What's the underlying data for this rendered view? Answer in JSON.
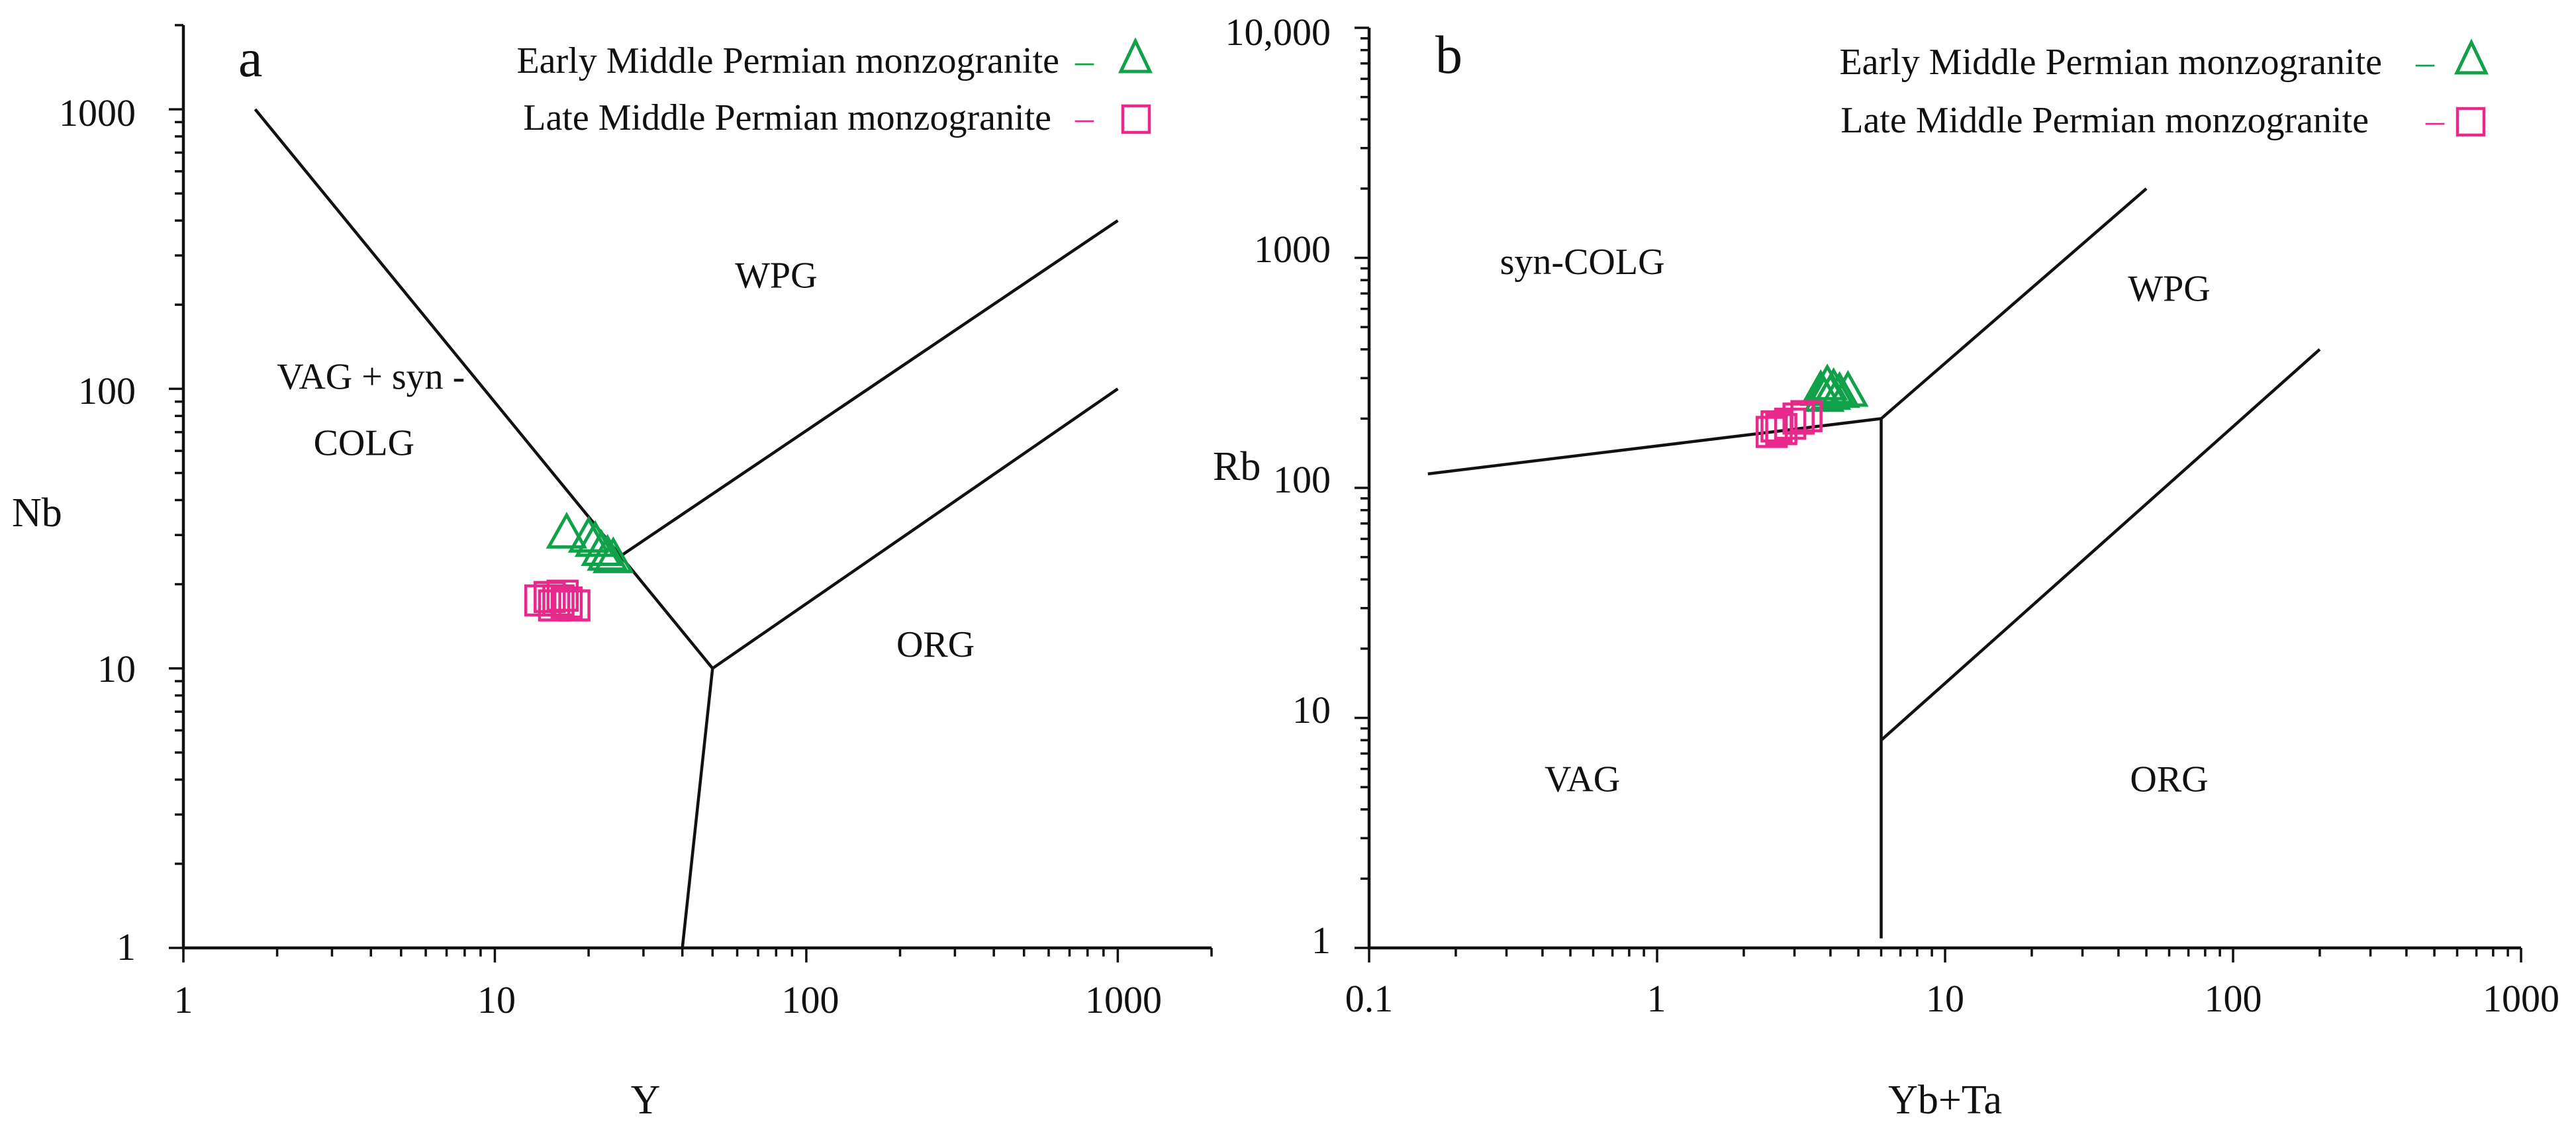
{
  "colors": {
    "early": "#11a14a",
    "late": "#e8298c",
    "ink": "#111111"
  },
  "legend": {
    "early_label": "Early Middle Permian monzogranite",
    "late_label": "Late Middle Permian monzogranite",
    "early_dash": "–",
    "late_dash": "–"
  },
  "chart_data": [
    {
      "type": "scatter",
      "panel_label": "a",
      "xlabel": "Y",
      "ylabel": "Nb",
      "xscale": "log",
      "yscale": "log",
      "xlim": [
        1,
        2000
      ],
      "ylim": [
        1,
        2000
      ],
      "x_tick_labels": [
        {
          "v": 1,
          "t": "1"
        },
        {
          "v": 10,
          "t": "10"
        },
        {
          "v": 100,
          "t": "100"
        },
        {
          "v": 1000,
          "t": "1000"
        }
      ],
      "y_tick_labels": [
        {
          "v": 1,
          "t": "1"
        },
        {
          "v": 10,
          "t": "10"
        },
        {
          "v": 100,
          "t": "100"
        },
        {
          "v": 1000,
          "t": "1000"
        }
      ],
      "boundaries": [
        [
          [
            1.7,
            1000
          ],
          [
            50,
            10
          ]
        ],
        [
          [
            50,
            10
          ],
          [
            40,
            1
          ]
        ],
        [
          [
            50,
            10
          ],
          [
            1000,
            100
          ]
        ],
        [
          [
            25,
            25
          ],
          [
            1000,
            400
          ]
        ]
      ],
      "fields": [
        {
          "label": "WPG",
          "x": 80,
          "y": 230
        },
        {
          "label": "VAG + syn -",
          "x": 4.0,
          "y": 100
        },
        {
          "label": "COLG",
          "x": 3.8,
          "y": 58
        },
        {
          "label": "ORG",
          "x": 260,
          "y": 11
        }
      ],
      "series": [
        {
          "name": "Early Middle Permian monzogranite",
          "marker": "triangle",
          "points": [
            [
              17,
              30
            ],
            [
              20,
              29
            ],
            [
              21,
              28
            ],
            [
              22,
              26
            ],
            [
              23,
              25
            ],
            [
              24,
              24.5
            ]
          ]
        },
        {
          "name": "Late Middle Permian monzogranite",
          "marker": "square",
          "points": [
            [
              14,
              17.5
            ],
            [
              15,
              18
            ],
            [
              16,
              17.5
            ],
            [
              15.5,
              16.8
            ],
            [
              17,
              17.2
            ],
            [
              18,
              16.8
            ],
            [
              16.5,
              18.2
            ]
          ]
        }
      ]
    },
    {
      "type": "scatter",
      "panel_label": "b",
      "xlabel": "Yb+Ta",
      "ylabel": "Rb",
      "xscale": "log",
      "yscale": "log",
      "xlim": [
        0.1,
        1000
      ],
      "ylim": [
        1,
        10000
      ],
      "x_tick_labels": [
        {
          "v": 0.1,
          "t": "0.1"
        },
        {
          "v": 1,
          "t": "1"
        },
        {
          "v": 10,
          "t": "10"
        },
        {
          "v": 100,
          "t": "100"
        },
        {
          "v": 1000,
          "t": "1000"
        }
      ],
      "y_tick_labels": [
        {
          "v": 1,
          "t": "1"
        },
        {
          "v": 10,
          "t": "10"
        },
        {
          "v": 100,
          "t": "100"
        },
        {
          "v": 1000,
          "t": "1000"
        },
        {
          "v": 10000,
          "t": "10,000"
        }
      ],
      "boundaries": [
        [
          [
            0.16,
            115
          ],
          [
            6,
            200
          ]
        ],
        [
          [
            6,
            200
          ],
          [
            50,
            2000
          ]
        ],
        [
          [
            6,
            200
          ],
          [
            6,
            1.1
          ]
        ],
        [
          [
            6,
            8
          ],
          [
            200,
            400
          ]
        ]
      ],
      "fields": [
        {
          "label": "syn-COLG",
          "x": 0.55,
          "y": 850
        },
        {
          "label": "WPG",
          "x": 60,
          "y": 650
        },
        {
          "label": "VAG",
          "x": 0.55,
          "y": 4.8
        },
        {
          "label": "ORG",
          "x": 60,
          "y": 4.8
        }
      ],
      "series": [
        {
          "name": "Early Middle Permian monzogranite",
          "marker": "triangle",
          "points": [
            [
              3.7,
              260
            ],
            [
              3.9,
              275
            ],
            [
              4.1,
              265
            ],
            [
              4.0,
              250
            ],
            [
              4.3,
              255
            ],
            [
              4.6,
              258
            ],
            [
              3.8,
              245
            ]
          ]
        },
        {
          "name": "Late Middle Permian monzogranite",
          "marker": "square",
          "points": [
            [
              2.5,
              175
            ],
            [
              2.7,
              180
            ],
            [
              2.9,
              190
            ],
            [
              3.1,
              200
            ],
            [
              3.3,
              205
            ],
            [
              2.6,
              185
            ]
          ]
        }
      ]
    }
  ]
}
